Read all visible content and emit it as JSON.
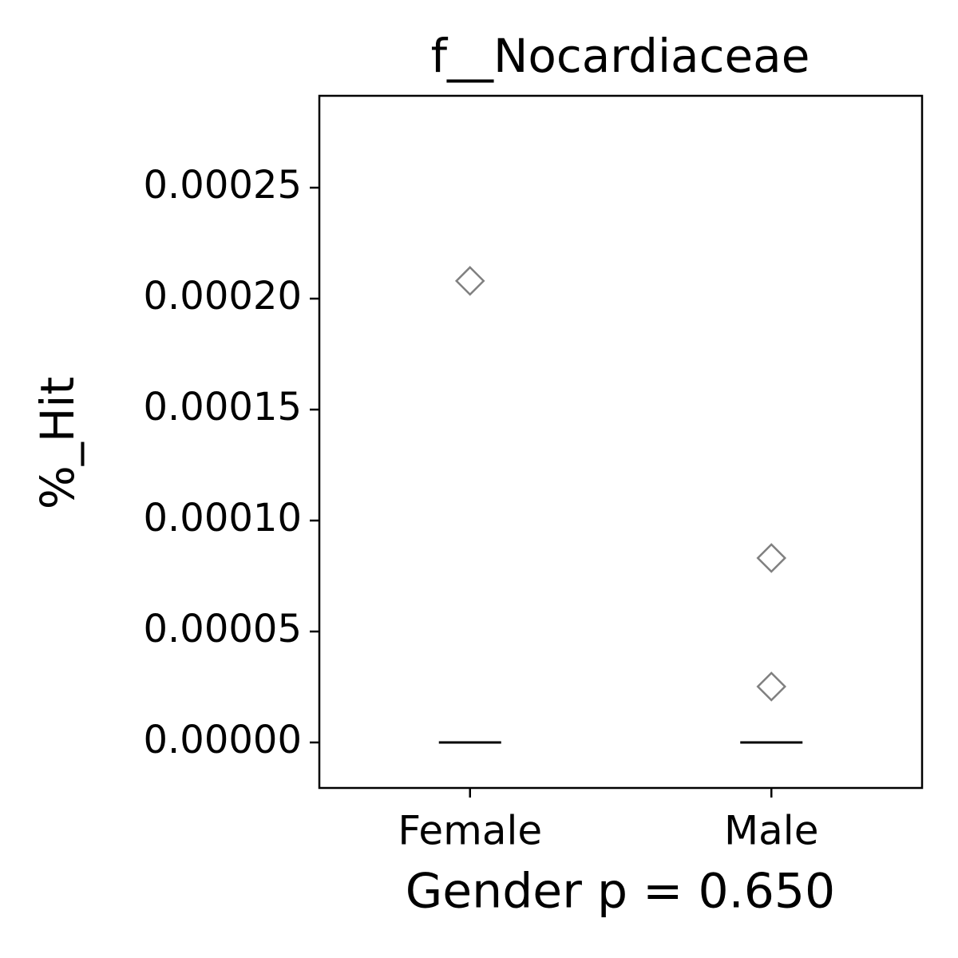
{
  "chart_data": {
    "type": "box",
    "title": "f__Nocardiaceae",
    "xlabel": "Gender p = 0.650",
    "ylabel": "%_Hit",
    "categories": [
      "Female",
      "Male"
    ],
    "boxes": [
      {
        "min": 0,
        "q1": 0,
        "median": 0,
        "q3": 0,
        "max": 0,
        "outliers": [
          0.000208
        ]
      },
      {
        "min": 0,
        "q1": 0,
        "median": 0,
        "q3": 0,
        "max": 0,
        "outliers": [
          8.31e-05,
          2.52e-05
        ]
      }
    ],
    "color": "#000000",
    "outlier_color": "#808080",
    "ylim": [
      -2.05e-05,
      0.0002914
    ],
    "yticks": [
      {
        "value": 0,
        "label": "0.00000"
      },
      {
        "value": 5e-05,
        "label": "0.00005"
      },
      {
        "value": 0.0001,
        "label": "0.00010"
      },
      {
        "value": 0.00015,
        "label": "0.00015"
      },
      {
        "value": 0.0002,
        "label": "0.00020"
      },
      {
        "value": 0.00025,
        "label": "0.00025"
      }
    ],
    "grid": false
  }
}
